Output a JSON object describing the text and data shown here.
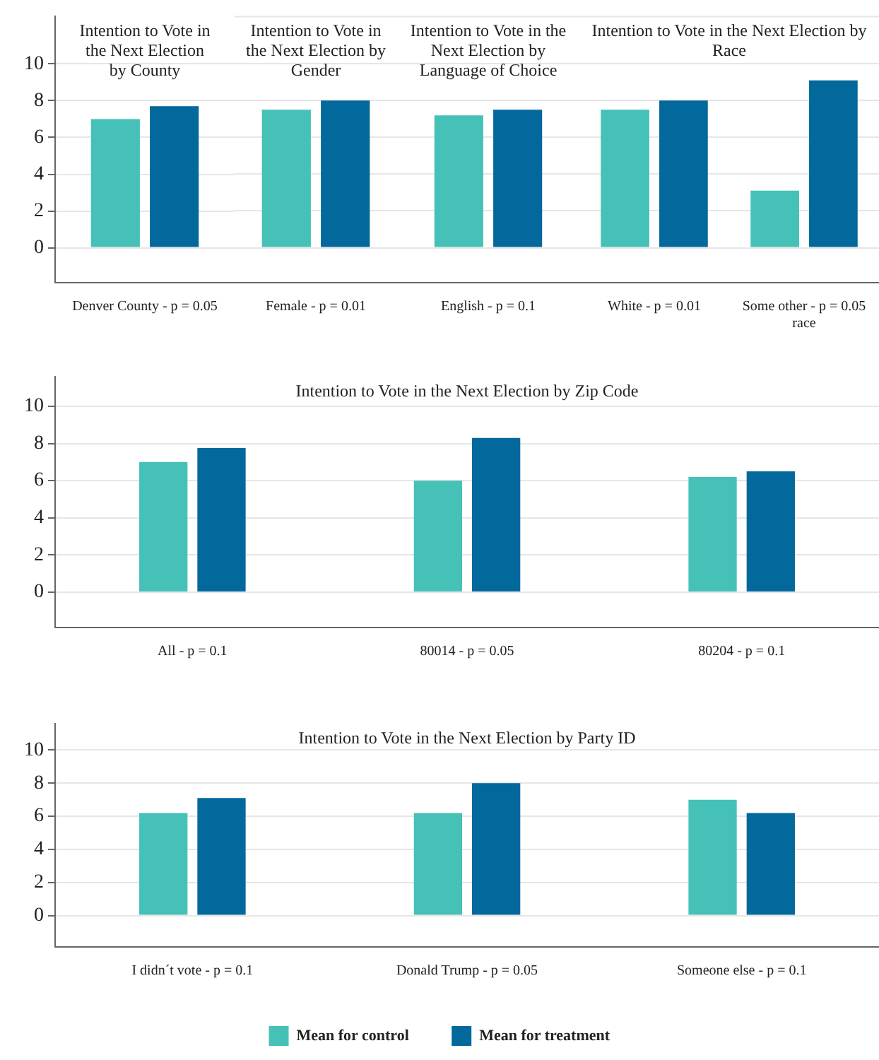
{
  "chart_data": [
    {
      "type": "bar",
      "title": "Intention to Vote in the Next Election by County",
      "categories": [
        "Denver County - p = 0.05"
      ],
      "series": [
        {
          "color": "#45c1b8",
          "values": [
            7.0
          ]
        },
        {
          "color": "#03689c",
          "values": [
            7.7
          ]
        }
      ],
      "ylim": [
        -1.9,
        12.6
      ],
      "yticks": [
        0,
        2,
        4,
        6,
        8,
        10
      ],
      "grid": "y"
    },
    {
      "type": "bar",
      "title": "Intention to Vote in the Next Election by Gender",
      "categories": [
        "Female - p = 0.01"
      ],
      "series": [
        {
          "color": "#45c1b8",
          "values": [
            7.5
          ]
        },
        {
          "color": "#03689c",
          "values": [
            8.0
          ]
        }
      ],
      "ylim": [
        -1.9,
        12.6
      ],
      "yticks": [
        0,
        2,
        4,
        6,
        8,
        10
      ],
      "grid": "y",
      "tick_labels": "x"
    },
    {
      "type": "bar",
      "title": "Intention to Vote in the Next Election by Language of Choice",
      "categories": [
        "English - p = 0.1"
      ],
      "series": [
        {
          "color": "#45c1b8",
          "values": [
            7.2
          ]
        },
        {
          "color": "#03689c",
          "values": [
            7.5
          ]
        }
      ],
      "ylim": [
        -1.9,
        12.6
      ],
      "yticks": [
        0,
        2,
        4,
        6,
        8,
        10
      ],
      "grid": "y",
      "tick_labels": "x"
    },
    {
      "type": "bar",
      "title": "Intention to Vote in the Next Election by Race",
      "categories": [
        "White - p = 0.01",
        "Some other - p = 0.05\nrace"
      ],
      "series": [
        {
          "color": "#45c1b8",
          "values": [
            7.5,
            3.1
          ]
        },
        {
          "color": "#03689c",
          "values": [
            8.0,
            9.1
          ]
        }
      ],
      "ylim": [
        -1.9,
        12.6
      ],
      "yticks": [
        0,
        2,
        4,
        6,
        8,
        10
      ],
      "grid": "y",
      "tick_labels": "x"
    },
    {
      "type": "bar",
      "title": "Intention to Vote in the Next Election by Zip Code",
      "categories": [
        "All - p = 0.1",
        "80014 - p = 0.05",
        "80204 - p = 0.1"
      ],
      "series": [
        {
          "color": "#45c1b8",
          "values": [
            7.0,
            6.0,
            6.2
          ]
        },
        {
          "color": "#03689c",
          "values": [
            7.75,
            8.3,
            6.5
          ]
        }
      ],
      "ylim": [
        -1.9,
        11.6
      ],
      "yticks": [
        0,
        2,
        4,
        6,
        8,
        10
      ],
      "grid": "y"
    },
    {
      "type": "bar",
      "title": "Intention to Vote in the Next Election by Party ID",
      "categories": [
        "I didn´t vote - p = 0.1",
        "Donald Trump - p = 0.05",
        "Someone else - p = 0.1"
      ],
      "series": [
        {
          "name": "Mean for control",
          "color": "#45c1b8",
          "values": [
            6.2,
            6.2,
            7.0
          ]
        },
        {
          "name": "Mean for treatment",
          "color": "#03689c",
          "values": [
            7.1,
            8.0,
            6.2
          ]
        }
      ],
      "ylim": [
        -1.9,
        11.6
      ],
      "yticks": [
        0,
        2,
        4,
        6,
        8,
        10
      ],
      "grid": "y",
      "legend": "bottom"
    }
  ]
}
